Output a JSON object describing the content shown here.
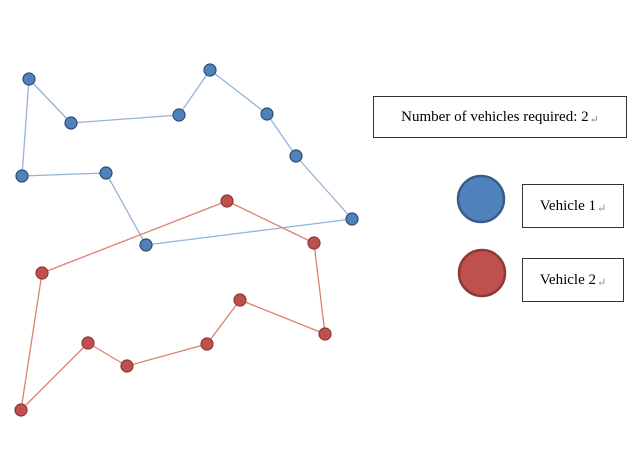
{
  "info": {
    "text": "Number of vehicles required: 2",
    "mark": "↵"
  },
  "legend": [
    {
      "label": "Vehicle 1",
      "mark": "↵",
      "fill": "#4f81bd",
      "stroke": "#385d8a"
    },
    {
      "label": "Vehicle 2",
      "mark": "↵",
      "fill": "#c0504d",
      "stroke": "#8c3836"
    }
  ],
  "routes": [
    {
      "line_color": "#95b3d7",
      "node_fill": "#4f81bd",
      "node_stroke": "#2c4d75"
    },
    {
      "line_color": "#d9826f",
      "node_fill": "#c0504d",
      "node_stroke": "#8c3836"
    }
  ]
}
